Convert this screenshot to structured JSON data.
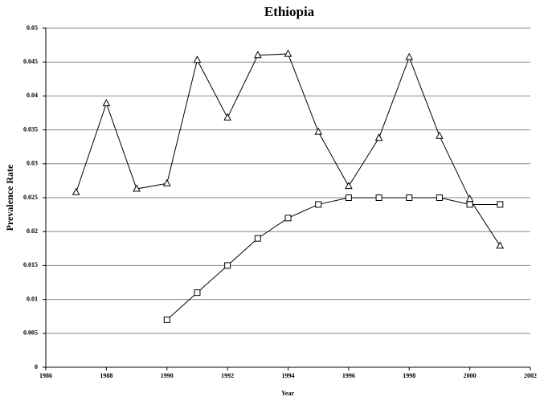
{
  "chart_data": {
    "type": "line",
    "title": "Ethiopia",
    "x_label": "Year",
    "y_label": "Prevalence Rate",
    "x": [
      1987,
      1988,
      1989,
      1990,
      1991,
      1992,
      1993,
      1994,
      1995,
      1996,
      1997,
      1998,
      1999,
      2000,
      2001
    ],
    "series": [
      {
        "color": "#000000",
        "marker": "triangle",
        "values": [
          0.0258,
          0.0389,
          0.0263,
          0.0271,
          0.0453,
          0.0368,
          0.046,
          0.0462,
          0.0347,
          0.0267,
          0.0338,
          0.0457,
          0.0341,
          0.0248,
          0.0179
        ]
      },
      {
        "color": "#000000",
        "marker": "square",
        "values": [
          null,
          null,
          null,
          0.007,
          0.011,
          0.015,
          0.019,
          0.022,
          0.024,
          0.025,
          0.025,
          0.025,
          0.025,
          0.024,
          0.024
        ]
      }
    ],
    "xlim": [
      1986,
      2002
    ],
    "xticks": [
      1986,
      1988,
      1990,
      1992,
      1994,
      1996,
      1998,
      2000,
      2002
    ],
    "ylim": [
      0,
      0.05
    ],
    "yticks": [
      0,
      0.005,
      0.01,
      0.015,
      0.02,
      0.025,
      0.03,
      0.035,
      0.04,
      0.045,
      0.05
    ],
    "grid": true
  }
}
